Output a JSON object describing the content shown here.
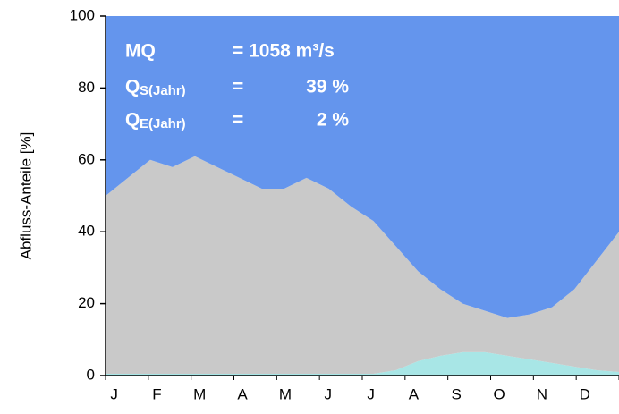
{
  "chart_data": {
    "type": "stacked-area",
    "ylabel": "Abfluss-Anteile [%]",
    "categories": [
      "J",
      null,
      "F",
      null,
      "M",
      null,
      "A",
      null,
      "M",
      null,
      "J",
      null,
      "J",
      null,
      "A",
      null,
      "S",
      null,
      "O",
      null,
      "N",
      null,
      "D",
      null
    ],
    "series": [
      {
        "color": "#a8e6e6",
        "values": [
          0.5,
          0.5,
          0.5,
          0.5,
          0.5,
          0.5,
          0.5,
          0.5,
          0.5,
          0.5,
          0.5,
          0.5,
          0.5,
          1.5,
          4,
          5.5,
          6.5,
          6.5,
          5.5,
          4.5,
          3.5,
          2.5,
          1.5,
          1
        ]
      },
      {
        "color": "#c9c9c9",
        "values": [
          49.5,
          54.5,
          59.5,
          57.5,
          60.5,
          57.5,
          54.5,
          51.5,
          51.5,
          54.5,
          51.5,
          46.5,
          42.5,
          34.5,
          25,
          18.5,
          13.5,
          11.5,
          10.5,
          12.5,
          15.5,
          21.5,
          30.5,
          39
        ]
      },
      {
        "color": "#6495ed",
        "values": [
          50,
          45,
          40,
          42,
          39,
          42,
          45,
          48,
          48,
          45,
          48,
          53,
          57,
          64,
          71,
          76,
          80,
          82,
          84,
          83,
          81,
          76,
          68,
          60
        ]
      }
    ],
    "ylim": [
      0,
      100
    ],
    "yticks": [
      0,
      20,
      40,
      60,
      80,
      100
    ],
    "annotations": [
      {
        "symbol": "MQ",
        "text": "= 1058 m³/s"
      },
      {
        "symbol": "Q",
        "subscript": "S(Jahr)",
        "text": "=",
        "value": "39 %"
      },
      {
        "symbol": "Q",
        "subscript": "E(Jahr)",
        "text": "=",
        "value": "2 %"
      }
    ]
  }
}
